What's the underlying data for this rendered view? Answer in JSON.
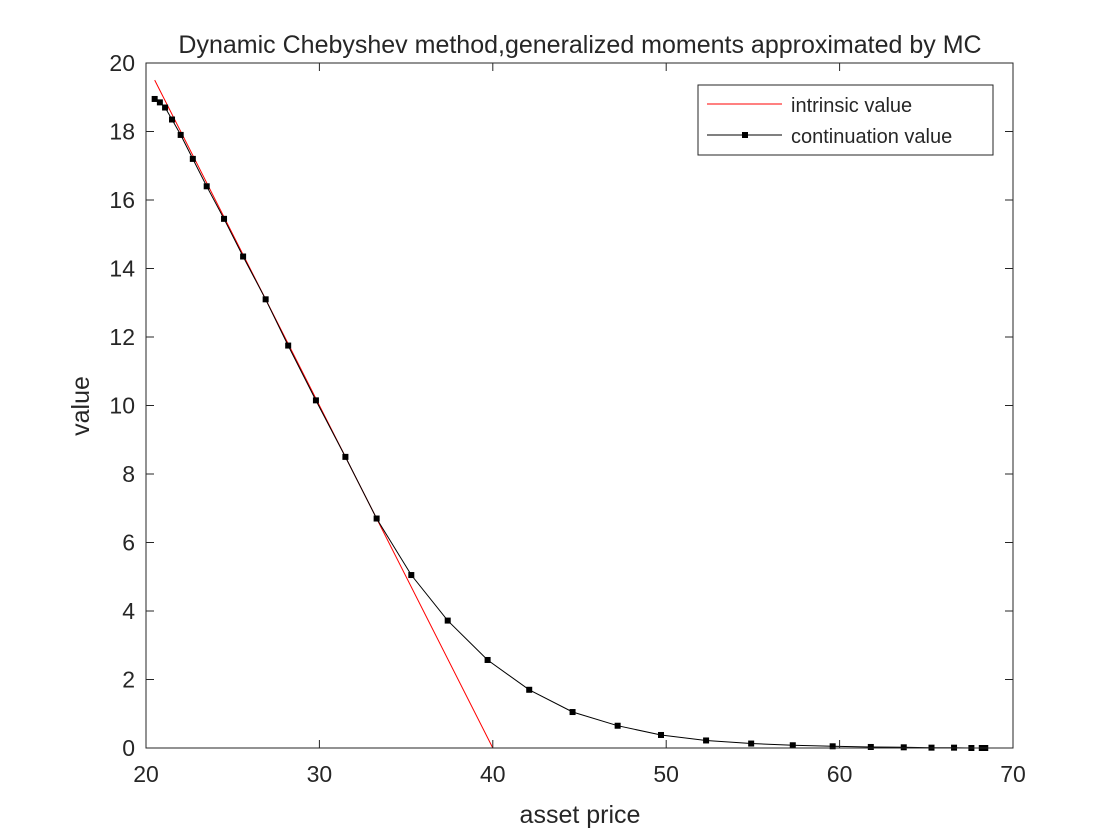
{
  "chart_data": {
    "type": "line",
    "title": "Dynamic Chebyshev method,generalized moments approximated by MC",
    "xlabel": "asset price",
    "ylabel": "value",
    "xlim": [
      20,
      70
    ],
    "ylim": [
      0,
      20
    ],
    "xticks": [
      20,
      30,
      40,
      50,
      60,
      70
    ],
    "yticks": [
      0,
      2,
      4,
      6,
      8,
      10,
      12,
      14,
      16,
      18,
      20
    ],
    "grid": false,
    "legend_position": "top-right",
    "series": [
      {
        "name": "intrinsic value",
        "color": "#ff0000",
        "marker": "none",
        "x": [
          20.5,
          40.0,
          68.5
        ],
        "y": [
          19.5,
          0.0,
          0.0
        ]
      },
      {
        "name": "continuation value",
        "color": "#000000",
        "marker": "square",
        "x": [
          20.5,
          20.8,
          21.1,
          21.5,
          22.0,
          22.7,
          23.5,
          24.5,
          25.6,
          26.9,
          28.2,
          29.8,
          31.5,
          33.3,
          35.3,
          37.4,
          39.7,
          42.1,
          44.6,
          47.2,
          49.7,
          52.3,
          54.9,
          57.3,
          59.6,
          61.8,
          63.7,
          65.3,
          66.6,
          67.6,
          68.2,
          68.4
        ],
        "y": [
          18.95,
          18.85,
          18.7,
          18.35,
          17.9,
          17.2,
          16.4,
          15.45,
          14.35,
          13.1,
          11.75,
          10.15,
          8.5,
          6.7,
          5.05,
          3.72,
          2.57,
          1.7,
          1.05,
          0.65,
          0.38,
          0.22,
          0.13,
          0.08,
          0.05,
          0.03,
          0.02,
          0.01,
          0.01,
          0.0,
          0.0,
          0.0
        ]
      }
    ]
  }
}
